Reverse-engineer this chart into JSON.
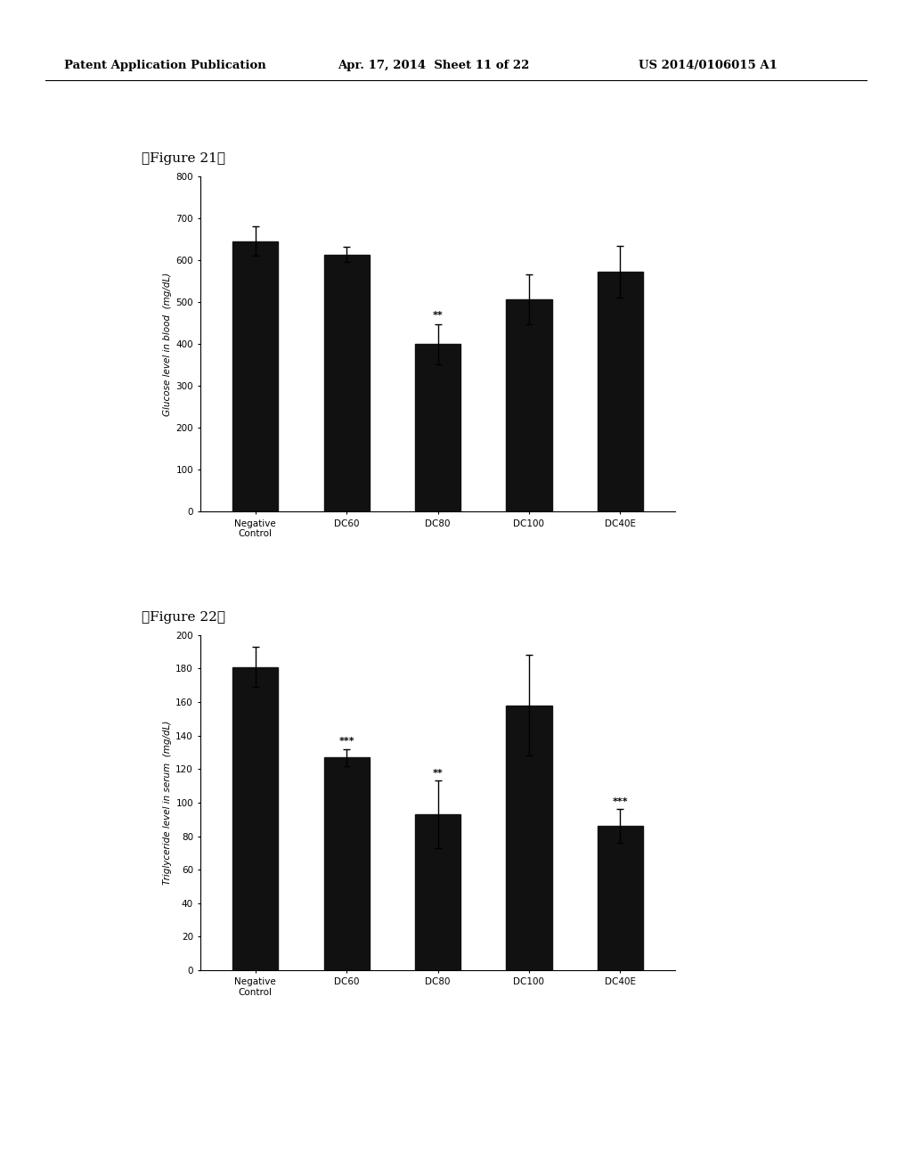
{
  "fig21": {
    "title": "【Figure 21】",
    "categories": [
      "Negative\nControl",
      "DC60",
      "DC80",
      "DC100",
      "DC40E"
    ],
    "values": [
      645,
      613,
      400,
      507,
      572
    ],
    "errors": [
      35,
      18,
      48,
      60,
      62
    ],
    "ylabel": "Glucose level in blood  (mg/dL)",
    "ylim": [
      0,
      800
    ],
    "yticks": [
      0,
      100,
      200,
      300,
      400,
      500,
      600,
      700,
      800
    ],
    "significance": [
      "",
      "",
      "**",
      "",
      ""
    ]
  },
  "fig22": {
    "title": "【Figure 22】",
    "categories": [
      "Negative\nControl",
      "DC60",
      "DC80",
      "DC100",
      "DC40E"
    ],
    "values": [
      181,
      127,
      93,
      158,
      86
    ],
    "errors": [
      12,
      5,
      20,
      30,
      10
    ],
    "ylabel": "Triglyceride level in serum  (mg/dL)",
    "ylim": [
      0,
      200
    ],
    "yticks": [
      0,
      20,
      40,
      60,
      80,
      100,
      120,
      140,
      160,
      180,
      200
    ],
    "significance": [
      "",
      "***",
      "**",
      "",
      "***"
    ]
  },
  "bar_color": "#111111",
  "bar_width": 0.5,
  "header_left": "Patent Application Publication",
  "header_mid": "Apr. 17, 2014  Sheet 11 of 22",
  "header_right": "US 2014/0106015 A1",
  "bg_color": "#ffffff",
  "plot_bg": "#ffffff"
}
